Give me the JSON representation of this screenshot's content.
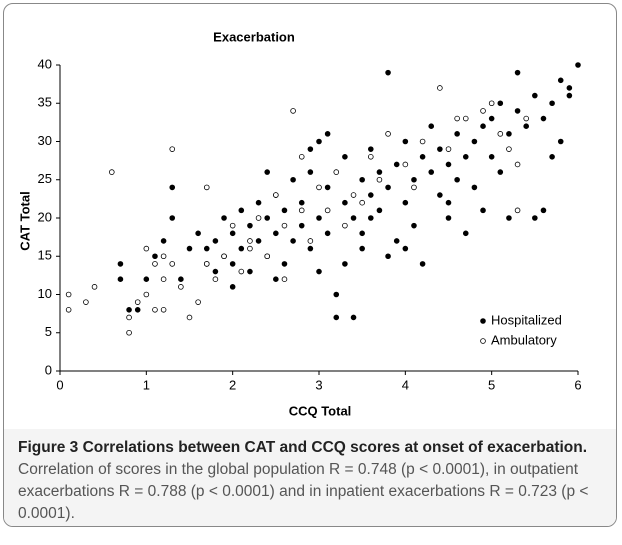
{
  "chart_data": {
    "type": "scatter",
    "title": "Exacerbation",
    "x_label": "CCQ Total",
    "y_label": "CAT Total",
    "xlim": [
      0,
      6
    ],
    "xticks": [
      0,
      1,
      2,
      3,
      4,
      5,
      6
    ],
    "ylim": [
      0,
      40
    ],
    "yticks": [
      0,
      5,
      10,
      15,
      20,
      25,
      30,
      35,
      40
    ],
    "grid": false,
    "legend": "lower right",
    "series": [
      {
        "name": "Hospitalized",
        "color": "#000000",
        "marker": "filled",
        "x": [
          0.7,
          0.7,
          0.8,
          0.9,
          1.0,
          1.1,
          1.2,
          1.3,
          1.3,
          1.4,
          1.5,
          1.6,
          1.7,
          1.7,
          1.8,
          1.8,
          1.9,
          1.9,
          2.0,
          2.0,
          2.1,
          2.1,
          2.2,
          2.2,
          2.3,
          2.3,
          2.4,
          2.4,
          2.5,
          2.5,
          2.6,
          2.6,
          2.7,
          2.7,
          2.8,
          2.8,
          2.9,
          2.9,
          3.0,
          3.0,
          3.1,
          3.1,
          3.2,
          3.2,
          3.3,
          3.3,
          3.4,
          3.4,
          3.5,
          3.5,
          3.6,
          3.6,
          3.7,
          3.7,
          3.8,
          3.8,
          3.9,
          3.9,
          4.0,
          4.0,
          4.1,
          4.1,
          4.2,
          4.2,
          4.3,
          4.3,
          4.4,
          4.4,
          4.5,
          4.5,
          4.6,
          4.6,
          4.7,
          4.7,
          4.8,
          4.8,
          4.9,
          4.9,
          5.0,
          5.0,
          5.1,
          5.1,
          5.2,
          5.2,
          5.3,
          5.3,
          5.4,
          5.5,
          5.5,
          5.6,
          5.6,
          5.7,
          5.7,
          5.8,
          5.8,
          5.9,
          6.0,
          5.9,
          3.5,
          3.0,
          2.5,
          4.0,
          3.3,
          2.0,
          3.8,
          4.5,
          3.6,
          2.4,
          2.9,
          3.1
        ],
        "values": [
          14,
          12,
          8,
          8,
          12,
          15,
          17,
          24,
          20,
          12,
          16,
          18,
          14,
          16,
          13,
          17,
          15,
          20,
          14,
          18,
          16,
          21,
          13,
          19,
          17,
          22,
          15,
          20,
          18,
          23,
          14,
          21,
          17,
          25,
          19,
          22,
          16,
          26,
          20,
          30,
          18,
          24,
          10,
          7,
          22,
          28,
          7,
          20,
          25,
          18,
          23,
          29,
          21,
          26,
          39,
          24,
          17,
          27,
          22,
          30,
          25,
          19,
          28,
          14,
          26,
          32,
          23,
          29,
          27,
          20,
          31,
          25,
          28,
          18,
          30,
          24,
          32,
          21,
          33,
          28,
          35,
          26,
          31,
          20,
          39,
          34,
          32,
          36,
          20,
          21,
          33,
          35,
          28,
          38,
          30,
          37,
          40,
          36,
          16,
          13,
          12,
          16,
          14,
          11,
          15,
          22,
          20,
          26,
          29,
          31
        ]
      },
      {
        "name": "Ambulatory",
        "color": "#000000",
        "marker": "hollow",
        "x": [
          0.1,
          0.1,
          0.3,
          0.4,
          0.6,
          0.8,
          0.8,
          0.9,
          1.0,
          1.0,
          1.1,
          1.1,
          1.2,
          1.2,
          1.3,
          1.3,
          1.4,
          1.5,
          1.6,
          1.7,
          1.8,
          1.9,
          2.0,
          2.1,
          2.2,
          2.3,
          2.4,
          2.5,
          2.6,
          2.7,
          2.8,
          2.8,
          2.9,
          3.0,
          3.1,
          3.2,
          3.3,
          3.4,
          3.6,
          3.7,
          3.8,
          4.0,
          4.2,
          4.4,
          4.5,
          4.7,
          4.9,
          5.0,
          5.2,
          5.3,
          5.3,
          5.4,
          5.1,
          2.2,
          1.7,
          3.5,
          4.1,
          4.6,
          2.6,
          1.2
        ],
        "values": [
          10,
          8,
          9,
          11,
          26,
          5,
          7,
          9,
          16,
          10,
          14,
          8,
          12,
          15,
          29,
          14,
          11,
          7,
          9,
          24,
          12,
          15,
          19,
          13,
          17,
          20,
          15,
          23,
          19,
          34,
          21,
          28,
          17,
          24,
          21,
          26,
          19,
          23,
          28,
          25,
          31,
          27,
          30,
          37,
          29,
          33,
          34,
          35,
          29,
          27,
          21,
          33,
          31,
          16,
          14,
          22,
          24,
          33,
          12,
          8
        ]
      }
    ]
  },
  "caption": {
    "label": "Figure 3",
    "title": "Correlations between CAT and CCQ scores at onset of exacerbation.",
    "text": "Correlation of scores in the global population R = 0.748 (p < 0.0001), in outpatient exacerbations R = 0.788 (p < 0.0001) and in inpatient exacerbations R = 0.723 (p < 0.0001)."
  }
}
